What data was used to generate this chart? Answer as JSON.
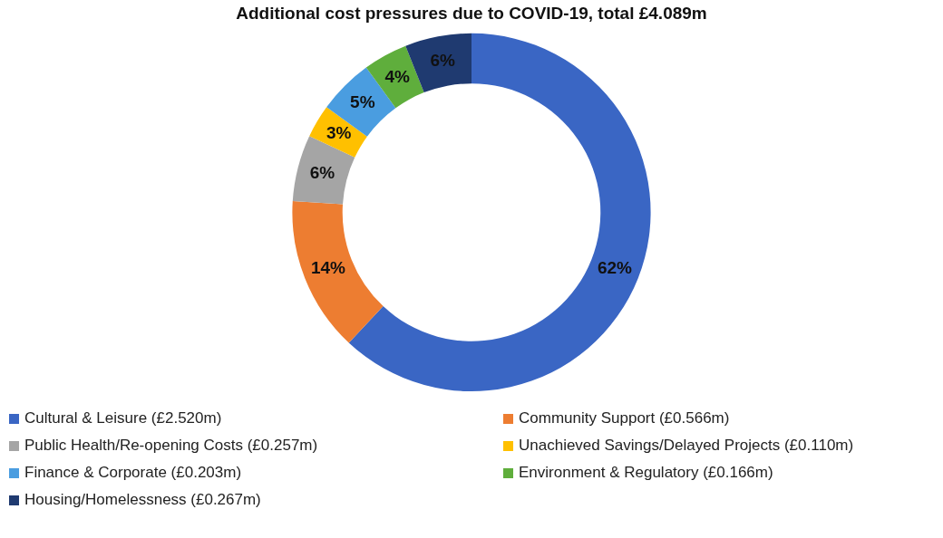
{
  "chart_data": {
    "type": "donut",
    "title": "Additional cost pressures due to COVID-19, total £4.089m",
    "categories": [
      "Cultural & Leisure (£2.520m)",
      "Community Support (£0.566m)",
      "Public Health/Re-opening Costs (£0.257m)",
      "Unachieved Savings/Delayed Projects (£0.110m)",
      "Finance & Corporate (£0.203m)",
      "Environment & Regulatory (£0.166m)",
      "Housing/Homelessness (£0.267m)"
    ],
    "values": [
      62,
      14,
      6,
      3,
      5,
      4,
      6
    ],
    "value_labels": [
      "62%",
      "14%",
      "6%",
      "3%",
      "5%",
      "4%",
      "6%"
    ],
    "colors": [
      "#3a66c4",
      "#ed7d31",
      "#a5a5a5",
      "#ffc000",
      "#4a9de0",
      "#5fae3c",
      "#1f3a70"
    ],
    "legend": "bottom"
  }
}
